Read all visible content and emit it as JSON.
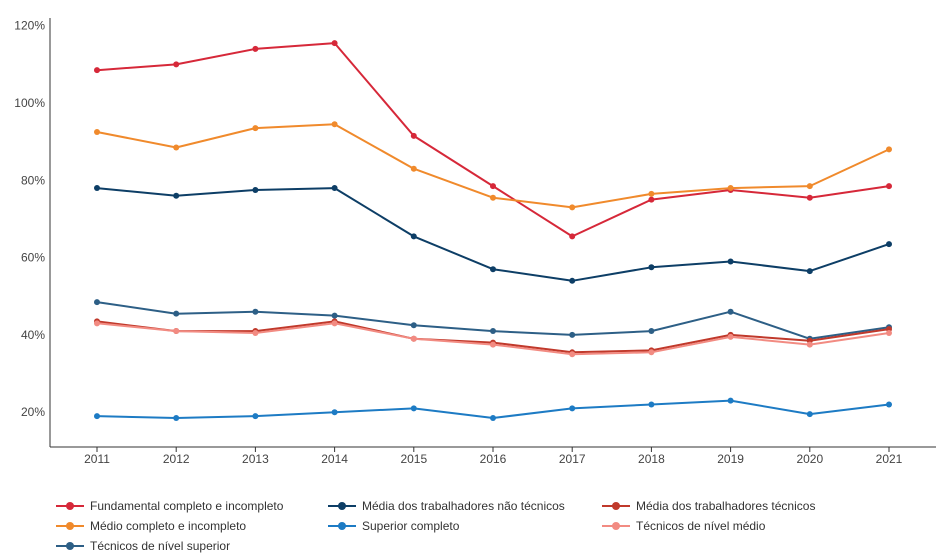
{
  "chart_data": {
    "type": "line",
    "title": "",
    "xlabel": "",
    "ylabel": "",
    "x": [
      "2011",
      "2012",
      "2013",
      "2014",
      "2015",
      "2016",
      "2017",
      "2018",
      "2019",
      "2020",
      "2021"
    ],
    "y_ticks": [
      "20%",
      "40%",
      "60%",
      "80%",
      "100%",
      "120%"
    ],
    "ylim": [
      11,
      122
    ],
    "grid": false,
    "legend_position": "bottom",
    "series": [
      {
        "name": "Fundamental completo e incompleto",
        "color": "#d62839",
        "values": [
          108.5,
          110,
          114,
          115.5,
          91.5,
          78.5,
          65.5,
          75,
          77.5,
          75.5,
          78.5
        ]
      },
      {
        "name": "Médio completo e incompleto",
        "color": "#f08a2c",
        "values": [
          92.5,
          88.5,
          93.5,
          94.5,
          83,
          75.5,
          73,
          76.5,
          78,
          78.5,
          88
        ]
      },
      {
        "name": "Técnicos de nível superior",
        "color": "#2d5f86",
        "values": [
          48.5,
          45.5,
          46,
          45,
          42.5,
          41,
          40,
          41,
          46,
          39,
          42
        ]
      },
      {
        "name": "Média dos trabalhadores não técnicos",
        "color": "#0d3e66",
        "values": [
          78,
          76,
          77.5,
          78,
          65.5,
          57,
          54,
          57.5,
          59,
          56.5,
          63.5
        ]
      },
      {
        "name": "Superior completo",
        "color": "#1d7bc4",
        "values": [
          19,
          18.5,
          19,
          20,
          21,
          18.5,
          21,
          22,
          23,
          19.5,
          22
        ]
      },
      {
        "name": "Média dos trabalhadores técnicos",
        "color": "#c0392b",
        "values": [
          43.5,
          41,
          41,
          43.5,
          39,
          38,
          35.5,
          36,
          40,
          38.5,
          41.5
        ]
      },
      {
        "name": "Técnicos de nível médio",
        "color": "#f28b82",
        "values": [
          43,
          41,
          40.5,
          43,
          39,
          37.5,
          35,
          35.5,
          39.5,
          37.5,
          40.5
        ]
      }
    ]
  }
}
